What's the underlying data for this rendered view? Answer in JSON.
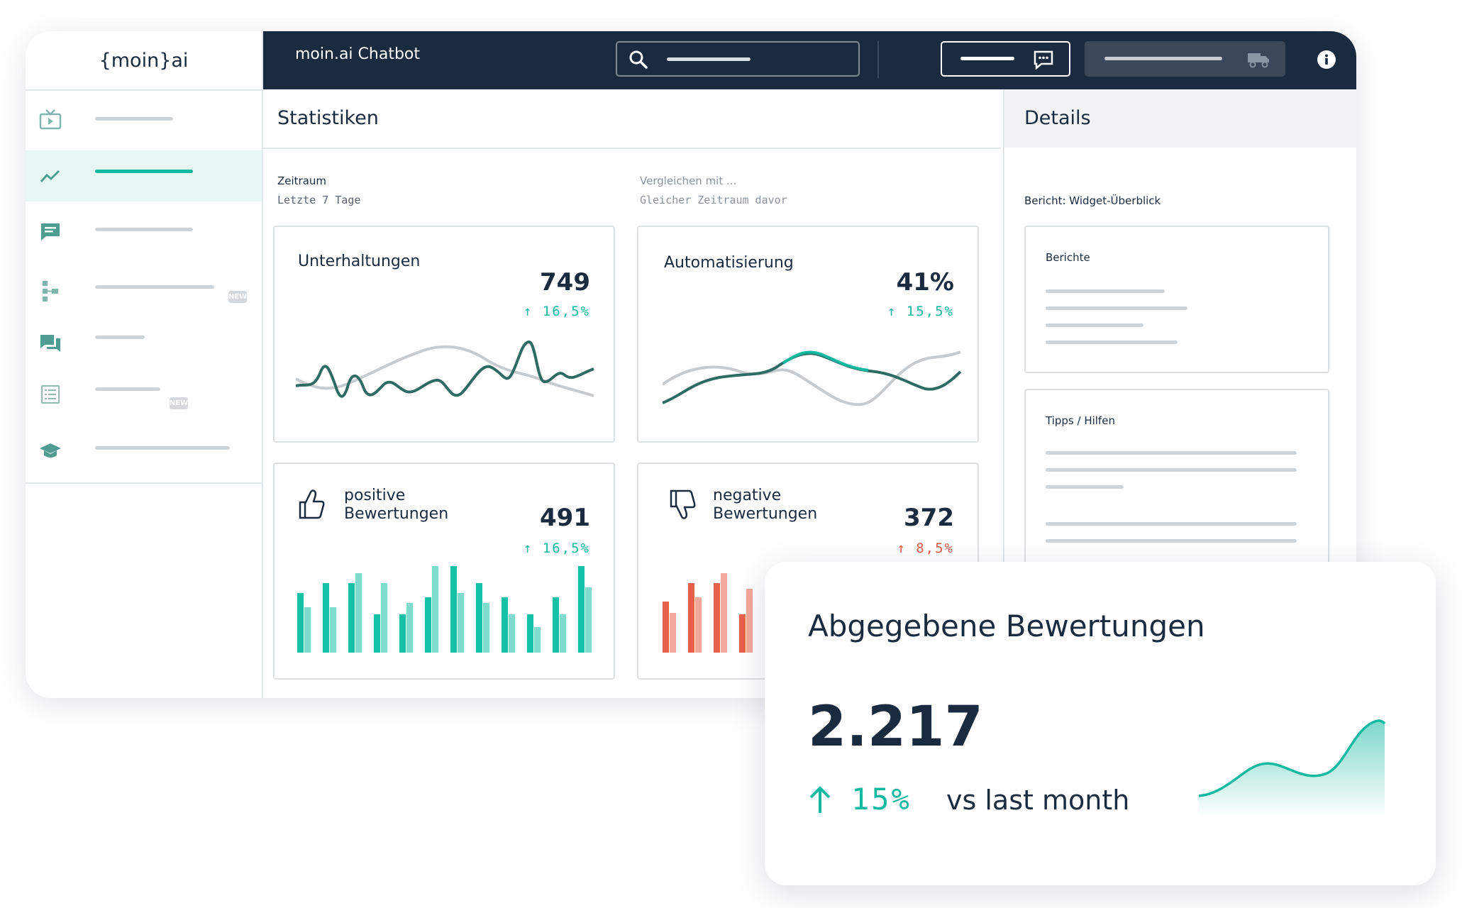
{
  "sidebar": {
    "logo": "{moin}ai",
    "items": [
      {
        "icon": "tv-icon"
      },
      {
        "icon": "trend-icon",
        "active": true
      },
      {
        "icon": "chat-icon"
      },
      {
        "icon": "flow-icon",
        "badge": "NEW"
      },
      {
        "icon": "conversation-icon"
      },
      {
        "icon": "list-icon",
        "badge": "NEW"
      },
      {
        "icon": "graduation-cap-icon"
      }
    ]
  },
  "topbar": {
    "title": "moin.ai Chatbot",
    "icons": [
      "search-icon",
      "chat-bubble-icon",
      "truck-icon",
      "info-icon"
    ]
  },
  "statistics": {
    "heading": "Statistiken",
    "period_label": "Zeitraum",
    "period_value": "Letzte 7 Tage",
    "compare_label": "Vergleichen mit ...",
    "compare_value": "Gleicher Zeitraum davor",
    "cards": {
      "conversations": {
        "title": "Unterhaltungen",
        "value": "749",
        "change": "↑ 16,5%"
      },
      "automation": {
        "title": "Automatisierung",
        "value": "41%",
        "change": "↑ 15,5%"
      },
      "positive": {
        "title_1": "positive",
        "title_2": "Bewertungen",
        "value": "491",
        "change": "↑ 16,5%",
        "icon": "thumbs-up-icon"
      },
      "negative": {
        "title_1": "negative",
        "title_2": "Bewertungen",
        "value": "372",
        "change": "↑ 8,5%",
        "icon": "thumbs-down-icon"
      }
    }
  },
  "details": {
    "heading": "Details",
    "report_label": "Bericht: Widget-Überblick",
    "reports_title": "Berichte",
    "tips_title": "Tipps / Hilfen"
  },
  "overlay": {
    "title": "Abgegebene Bewertungen",
    "value": "2.217",
    "change": "15%",
    "comparison": "vs last month"
  },
  "colors": {
    "navy": "#1b2b3f",
    "teal": "#13b8a0",
    "teal_light": "#7fdccd",
    "dark_green": "#2e6b62",
    "coral": "#e8604c",
    "coral_light": "#f4a899"
  }
}
